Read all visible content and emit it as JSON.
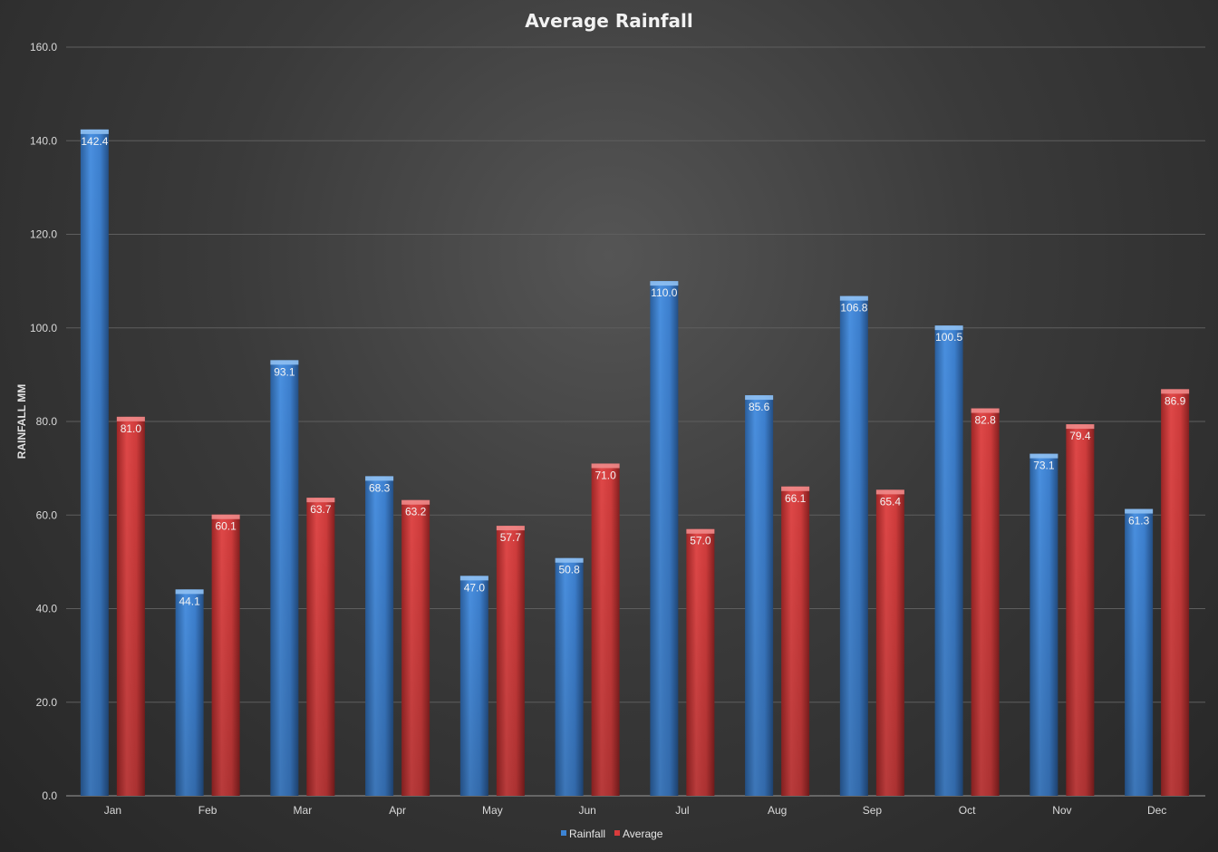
{
  "chart_data": {
    "type": "bar",
    "title": "Average Rainfall",
    "xlabel": "",
    "ylabel": "RAINFALL MM",
    "ylim": [
      0,
      160
    ],
    "yticks": [
      "0.0",
      "20.0",
      "40.0",
      "60.0",
      "80.0",
      "100.0",
      "120.0",
      "140.0",
      "160.0"
    ],
    "grid": true,
    "legend_position": "bottom",
    "categories": [
      "Jan",
      "Feb",
      "Mar",
      "Apr",
      "May",
      "Jun",
      "Jul",
      "Aug",
      "Sep",
      "Oct",
      "Nov",
      "Dec"
    ],
    "series": [
      {
        "name": "Rainfall",
        "color": "#3d84d4",
        "values": [
          142.4,
          44.1,
          93.1,
          68.3,
          47.0,
          50.8,
          110.0,
          85.6,
          106.8,
          100.5,
          73.1,
          61.3
        ],
        "labels": [
          "142.4",
          "44.1",
          "93.1",
          "68.3",
          "47.0",
          "50.8",
          "110.0",
          "85.6",
          "106.8",
          "100.5",
          "73.1",
          "61.3"
        ]
      },
      {
        "name": "Average",
        "color": "#d93c3c",
        "values": [
          81.0,
          60.1,
          63.7,
          63.2,
          57.7,
          71.0,
          57.0,
          66.1,
          65.4,
          82.8,
          79.4,
          86.9
        ],
        "labels": [
          "81.0",
          "60.1",
          "63.7",
          "63.2",
          "57.7",
          "71.0",
          "57.0",
          "66.1",
          "65.4",
          "82.8",
          "79.4",
          "86.9"
        ]
      }
    ]
  }
}
